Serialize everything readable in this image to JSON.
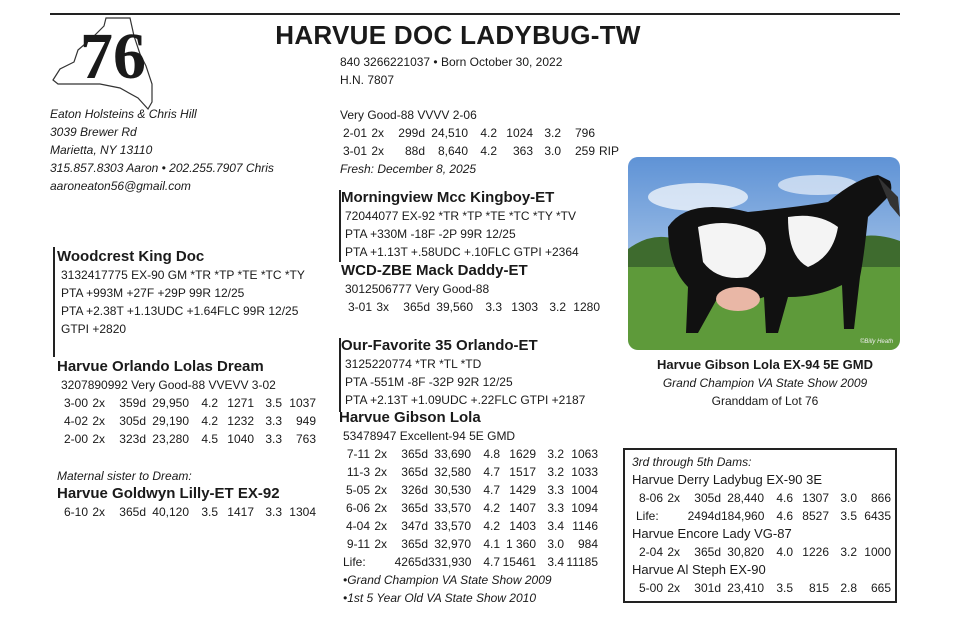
{
  "lot": "76",
  "title": "HARVUE DOC LADYBUG-TW",
  "id_lines": [
    "840 3266221037 • Born October 30, 2022",
    "H.N. 7807"
  ],
  "consignor": [
    "Eaton Holsteins & Chris Hill",
    "3039 Brewer Rd",
    "Marietta, NY 13110",
    "315.857.8303 Aaron • 202.255.7907 Chris",
    "aaroneaton56@gmail.com"
  ],
  "animal": {
    "lines": [
      "Very Good-88 VVVV 2-06"
    ],
    "records": [
      [
        "2-01",
        "2x",
        "299d",
        "24,510",
        "4.2",
        "1024",
        "3.2",
        "796"
      ],
      [
        "3-01",
        "2x",
        "88d",
        "8,640",
        "4.2",
        "363",
        "3.0",
        "259",
        "RIP"
      ]
    ],
    "fresh": "Fresh: December 8, 2025"
  },
  "sire": {
    "name": "Woodcrest King Doc",
    "lines": [
      "3132417775 EX-90 GM *TR *TP *TE *TC *TY",
      "PTA +993M +27F +29P 99R 12/25",
      "PTA +2.38T +1.13UDC +1.64FLC 99R 12/25",
      "GTPI +2820"
    ]
  },
  "dam": {
    "name": "Harvue Orlando Lolas Dream",
    "lines": [
      "3207890992 Very Good-88 VVEVV 3-02"
    ],
    "records": [
      [
        "3-00",
        "2x",
        "359d",
        "29,950",
        "4.2",
        "1271",
        "3.5",
        "1037"
      ],
      [
        "4-02",
        "2x",
        "305d",
        "29,190",
        "4.2",
        "1232",
        "3.3",
        "949"
      ],
      [
        "2-00",
        "2x",
        "323d",
        "23,280",
        "4.5",
        "1040",
        "3.3",
        "763"
      ]
    ]
  },
  "maternal_sister": {
    "note": "Maternal sister to Dream:",
    "name": "Harvue Goldwyn Lilly-ET EX-92",
    "records": [
      [
        "6-10",
        "2x",
        "365d",
        "40,120",
        "3.5",
        "1417",
        "3.3",
        "1304"
      ]
    ]
  },
  "sire_sire": {
    "name": "Morningview Mcc Kingboy-ET",
    "lines": [
      "72044077 EX-92 *TR *TP *TE *TC *TY *TV",
      "PTA +330M -18F -2P 99R 12/25",
      "PTA +1.13T +.58UDC +.10FLC GTPI +2364"
    ]
  },
  "sire_dam": {
    "name": "WCD-ZBE Mack Daddy-ET",
    "lines": [
      "3012506777 Very Good-88"
    ],
    "records": [
      [
        "3-01",
        "3x",
        "365d",
        "39,560",
        "3.3",
        "1303",
        "3.2",
        "1280"
      ]
    ]
  },
  "dam_sire": {
    "name": "Our-Favorite 35 Orlando-ET",
    "lines": [
      "3125220774 *TR *TL *TD",
      "PTA -551M -8F -32P 92R 12/25",
      "PTA +2.13T +1.09UDC +.22FLC GTPI +2187"
    ]
  },
  "dam_dam": {
    "name": "Harvue Gibson Lola",
    "lines": [
      "53478947 Excellent-94 5E GMD"
    ],
    "records": [
      [
        "7-11",
        "2x",
        "365d",
        "33,690",
        "4.8",
        "1629",
        "3.2",
        "1063"
      ],
      [
        "11-3",
        "2x",
        "365d",
        "32,580",
        "4.7",
        "1517",
        "3.2",
        "1033"
      ],
      [
        "5-05",
        "2x",
        "326d",
        "30,530",
        "4.7",
        "1429",
        "3.3",
        "1004"
      ],
      [
        "6-06",
        "2x",
        "365d",
        "33,570",
        "4.2",
        "1407",
        "3.3",
        "1094"
      ],
      [
        "4-04",
        "2x",
        "347d",
        "33,570",
        "4.2",
        "1403",
        "3.4",
        "1146"
      ],
      [
        "9-11",
        "2x",
        "365d",
        "32,970",
        "4.1",
        "1 360",
        "3.0",
        "984"
      ],
      [
        "Life:",
        "4265d",
        "331,930",
        "4.7",
        "15461",
        "3.4",
        "11185"
      ]
    ],
    "notes": [
      "•Grand Champion VA State Show 2009",
      "•1st 5 Year Old VA State Show 2010"
    ]
  },
  "photo": {
    "credit": "©Billy Heath",
    "caption": [
      "Harvue Gibson Lola EX-94 5E GMD",
      "Grand Champion VA State Show 2009",
      "Granddam of Lot 76"
    ]
  },
  "dams_box": {
    "heading": "3rd through 5th Dams:",
    "dams": [
      {
        "name": "Harvue Derry Ladybug EX-90 3E",
        "records": [
          [
            "8-06",
            "2x",
            "305d",
            "28,440",
            "4.6",
            "1307",
            "3.0",
            "866"
          ],
          [
            "Life:",
            "2494d",
            "184,960",
            "4.6",
            "8527",
            "3.5",
            "6435"
          ]
        ]
      },
      {
        "name": "Harvue Encore Lady VG-87",
        "records": [
          [
            "2-04",
            "2x",
            "365d",
            "30,820",
            "4.0",
            "1226",
            "3.2",
            "1000"
          ]
        ]
      },
      {
        "name": "Harvue Al Steph EX-90",
        "records": [
          [
            "5-00",
            "2x",
            "301d",
            "23,410",
            "3.5",
            "815",
            "2.8",
            "665"
          ]
        ]
      }
    ]
  }
}
